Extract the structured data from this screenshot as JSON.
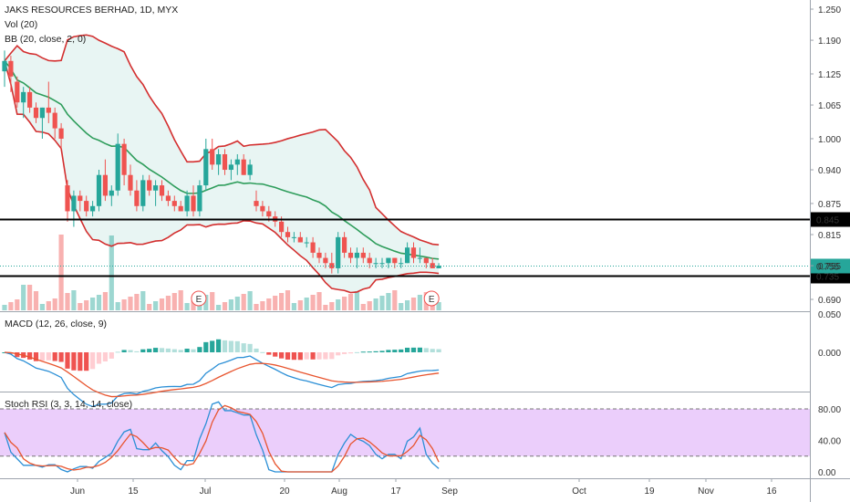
{
  "header": {
    "symbol_line": "JAKS RESOURCES BERHAD, 1D, MYX",
    "vol_label": "Vol (20)",
    "bb_label": "BB (20, close, 2, 0)",
    "macd_label": "MACD (12, 26, close, 9)",
    "stoch_label": "Stoch RSI (3, 3, 14, 14, close)"
  },
  "colors": {
    "up": "#26a69a",
    "down": "#ef5350",
    "bb_band": "#d32f2f",
    "bb_basis": "#2e9d5b",
    "bb_fill": "#e8f5f3",
    "macd_line": "#2b8fd6",
    "signal_line": "#e8552f",
    "stoch_k": "#2b8fd6",
    "stoch_d": "#e8552f",
    "stoch_band": "#e9c9fb",
    "hline": "#000000"
  },
  "chart_data": [
    {
      "type": "candlestick",
      "price_ticks": [
        "1.250",
        "1.190",
        "1.125",
        "1.065",
        "1.000",
        "0.940",
        "0.875",
        "0.815",
        "0.755",
        "0.690"
      ],
      "ylim": [
        0.665,
        1.262
      ],
      "x_ticks": [
        "Jun",
        "15",
        "Jul",
        "20",
        "Aug",
        "17",
        "Sep",
        "Oct",
        "19",
        "Nov",
        "16"
      ],
      "horizontal_lines": [
        {
          "value": 0.845,
          "label": "0.845"
        },
        {
          "value": 0.735,
          "label": "0.735"
        }
      ],
      "last_price": {
        "value": 0.755,
        "label": "0.755"
      },
      "earnings_markers": [
        "E",
        "E"
      ],
      "candles": [
        {
          "o": 1.13,
          "h": 1.17,
          "l": 1.1,
          "c": 1.15
        },
        {
          "o": 1.15,
          "h": 1.16,
          "l": 1.09,
          "c": 1.12
        },
        {
          "o": 1.11,
          "h": 1.12,
          "l": 1.06,
          "c": 1.07
        },
        {
          "o": 1.07,
          "h": 1.1,
          "l": 1.04,
          "c": 1.09
        },
        {
          "o": 1.09,
          "h": 1.1,
          "l": 1.05,
          "c": 1.06
        },
        {
          "o": 1.06,
          "h": 1.07,
          "l": 1.03,
          "c": 1.04
        },
        {
          "o": 1.04,
          "h": 1.06,
          "l": 1.0,
          "c": 1.06
        },
        {
          "o": 1.06,
          "h": 1.11,
          "l": 1.03,
          "c": 1.05
        },
        {
          "o": 1.05,
          "h": 1.06,
          "l": 1.0,
          "c": 1.02
        },
        {
          "o": 1.02,
          "h": 1.03,
          "l": 0.98,
          "c": 1.0
        },
        {
          "o": 0.91,
          "h": 0.92,
          "l": 0.84,
          "c": 0.86
        },
        {
          "o": 0.86,
          "h": 0.9,
          "l": 0.83,
          "c": 0.89
        },
        {
          "o": 0.89,
          "h": 0.9,
          "l": 0.86,
          "c": 0.88
        },
        {
          "o": 0.88,
          "h": 0.89,
          "l": 0.85,
          "c": 0.86
        },
        {
          "o": 0.86,
          "h": 0.88,
          "l": 0.85,
          "c": 0.87
        },
        {
          "o": 0.87,
          "h": 0.94,
          "l": 0.86,
          "c": 0.93
        },
        {
          "o": 0.93,
          "h": 0.96,
          "l": 0.88,
          "c": 0.89
        },
        {
          "o": 0.89,
          "h": 0.91,
          "l": 0.87,
          "c": 0.9
        },
        {
          "o": 0.9,
          "h": 1.01,
          "l": 0.89,
          "c": 0.99
        },
        {
          "o": 0.99,
          "h": 1.0,
          "l": 0.91,
          "c": 0.93
        },
        {
          "o": 0.93,
          "h": 0.95,
          "l": 0.89,
          "c": 0.9
        },
        {
          "o": 0.9,
          "h": 0.92,
          "l": 0.86,
          "c": 0.87
        },
        {
          "o": 0.87,
          "h": 0.93,
          "l": 0.86,
          "c": 0.92
        },
        {
          "o": 0.92,
          "h": 0.93,
          "l": 0.89,
          "c": 0.9
        },
        {
          "o": 0.9,
          "h": 0.92,
          "l": 0.87,
          "c": 0.91
        },
        {
          "o": 0.91,
          "h": 0.92,
          "l": 0.88,
          "c": 0.89
        },
        {
          "o": 0.89,
          "h": 0.9,
          "l": 0.87,
          "c": 0.88
        },
        {
          "o": 0.88,
          "h": 0.89,
          "l": 0.86,
          "c": 0.87
        },
        {
          "o": 0.87,
          "h": 0.88,
          "l": 0.86,
          "c": 0.86
        },
        {
          "o": 0.86,
          "h": 0.9,
          "l": 0.85,
          "c": 0.89
        },
        {
          "o": 0.89,
          "h": 0.91,
          "l": 0.85,
          "c": 0.86
        },
        {
          "o": 0.86,
          "h": 0.92,
          "l": 0.85,
          "c": 0.91
        },
        {
          "o": 0.91,
          "h": 1.0,
          "l": 0.9,
          "c": 0.98
        },
        {
          "o": 0.98,
          "h": 1.0,
          "l": 0.94,
          "c": 0.95
        },
        {
          "o": 0.95,
          "h": 0.98,
          "l": 0.93,
          "c": 0.97
        },
        {
          "o": 0.97,
          "h": 0.98,
          "l": 0.93,
          "c": 0.94
        },
        {
          "o": 0.94,
          "h": 0.96,
          "l": 0.92,
          "c": 0.95
        },
        {
          "o": 0.95,
          "h": 0.97,
          "l": 0.93,
          "c": 0.96
        },
        {
          "o": 0.96,
          "h": 0.97,
          "l": 0.93,
          "c": 0.93
        },
        {
          "o": 0.93,
          "h": 0.96,
          "l": 0.92,
          "c": 0.95
        },
        {
          "o": 0.88,
          "h": 0.9,
          "l": 0.86,
          "c": 0.87
        },
        {
          "o": 0.87,
          "h": 0.88,
          "l": 0.85,
          "c": 0.86
        },
        {
          "o": 0.86,
          "h": 0.87,
          "l": 0.84,
          "c": 0.85
        },
        {
          "o": 0.85,
          "h": 0.86,
          "l": 0.83,
          "c": 0.84
        },
        {
          "o": 0.84,
          "h": 0.85,
          "l": 0.81,
          "c": 0.82
        },
        {
          "o": 0.82,
          "h": 0.83,
          "l": 0.8,
          "c": 0.81
        },
        {
          "o": 0.81,
          "h": 0.82,
          "l": 0.8,
          "c": 0.81
        },
        {
          "o": 0.81,
          "h": 0.82,
          "l": 0.8,
          "c": 0.8
        },
        {
          "o": 0.8,
          "h": 0.81,
          "l": 0.79,
          "c": 0.8
        },
        {
          "o": 0.8,
          "h": 0.81,
          "l": 0.77,
          "c": 0.78
        },
        {
          "o": 0.78,
          "h": 0.79,
          "l": 0.76,
          "c": 0.77
        },
        {
          "o": 0.77,
          "h": 0.78,
          "l": 0.75,
          "c": 0.76
        },
        {
          "o": 0.76,
          "h": 0.78,
          "l": 0.74,
          "c": 0.75
        },
        {
          "o": 0.75,
          "h": 0.82,
          "l": 0.74,
          "c": 0.81
        },
        {
          "o": 0.81,
          "h": 0.82,
          "l": 0.77,
          "c": 0.78
        },
        {
          "o": 0.78,
          "h": 0.79,
          "l": 0.76,
          "c": 0.77
        },
        {
          "o": 0.77,
          "h": 0.79,
          "l": 0.75,
          "c": 0.78
        },
        {
          "o": 0.78,
          "h": 0.79,
          "l": 0.76,
          "c": 0.77
        },
        {
          "o": 0.77,
          "h": 0.78,
          "l": 0.75,
          "c": 0.76
        },
        {
          "o": 0.76,
          "h": 0.77,
          "l": 0.75,
          "c": 0.76
        },
        {
          "o": 0.76,
          "h": 0.77,
          "l": 0.75,
          "c": 0.76
        },
        {
          "o": 0.76,
          "h": 0.77,
          "l": 0.75,
          "c": 0.77
        },
        {
          "o": 0.77,
          "h": 0.77,
          "l": 0.75,
          "c": 0.76
        },
        {
          "o": 0.76,
          "h": 0.77,
          "l": 0.75,
          "c": 0.76
        },
        {
          "o": 0.76,
          "h": 0.8,
          "l": 0.76,
          "c": 0.79
        },
        {
          "o": 0.79,
          "h": 0.8,
          "l": 0.76,
          "c": 0.77
        },
        {
          "o": 0.77,
          "h": 0.79,
          "l": 0.76,
          "c": 0.77
        },
        {
          "o": 0.77,
          "h": 0.77,
          "l": 0.75,
          "c": 0.76
        },
        {
          "o": 0.76,
          "h": 0.77,
          "l": 0.75,
          "c": 0.75
        },
        {
          "o": 0.75,
          "h": 0.76,
          "l": 0.75,
          "c": 0.755
        }
      ]
    },
    {
      "type": "histogram",
      "name": "MACD",
      "y_ticks": [
        "0.050",
        "0.000"
      ],
      "ylim": [
        -0.055,
        0.05
      ]
    },
    {
      "type": "line",
      "name": "Stoch RSI",
      "y_ticks": [
        "80.00",
        "40.00",
        "0.00"
      ],
      "ylim": [
        -5,
        100
      ]
    }
  ]
}
